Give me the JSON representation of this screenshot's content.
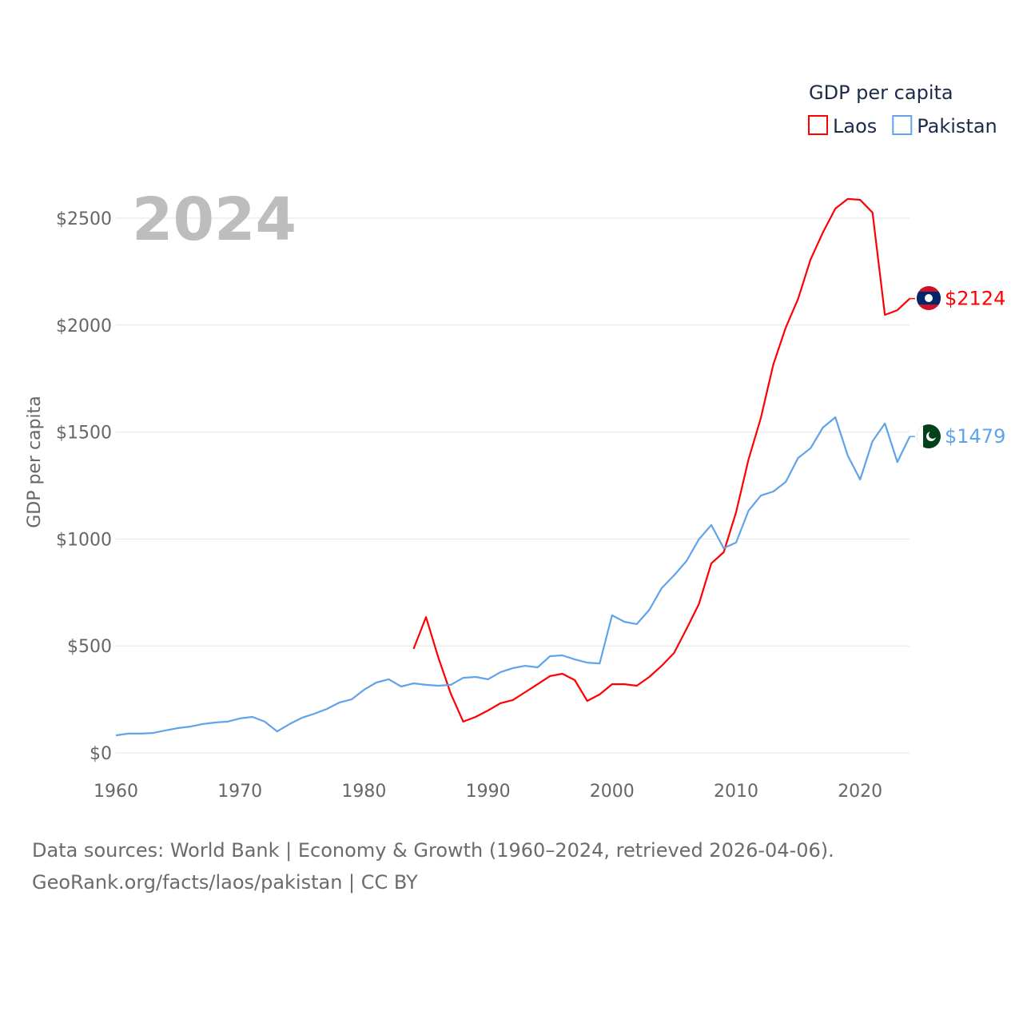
{
  "chart_data": {
    "type": "line",
    "title": "GDP per capita",
    "big_year": "2024",
    "ylabel": "GDP per capita",
    "xlabel": "",
    "ylim": [
      0,
      2500
    ],
    "xlim": [
      1960,
      2024
    ],
    "yticks": [
      0,
      500,
      1000,
      1500,
      2000,
      2500
    ],
    "ytick_labels": [
      "$0",
      "$500",
      "$1000",
      "$1500",
      "$2000",
      "$2500"
    ],
    "xticks": [
      1960,
      1970,
      1980,
      1990,
      2000,
      2010,
      2020
    ],
    "xtick_labels": [
      "1960",
      "1970",
      "1980",
      "1990",
      "2000",
      "2010",
      "2020"
    ],
    "grid": true,
    "legend_placement": "top-right",
    "series": [
      {
        "name": "Laos",
        "color": "#ff0000",
        "end_label": "$2124",
        "start": 1984,
        "values": [
          486,
          635,
          445,
          277,
          146,
          168,
          198,
          232,
          247,
          284,
          321,
          359,
          370,
          340,
          243,
          273,
          321,
          321,
          314,
          355,
          407,
          467,
          579,
          695,
          886,
          938,
          1125,
          1371,
          1566,
          1816,
          1988,
          2123,
          2306,
          2433,
          2545,
          2590,
          2586,
          2526,
          2048,
          2070,
          2124
        ]
      },
      {
        "name": "Pakistan",
        "color": "#5fa4ea",
        "end_label": "$1479",
        "start": 1960,
        "values": [
          82,
          90,
          90,
          93,
          105,
          116,
          123,
          135,
          142,
          146,
          161,
          168,
          146,
          100,
          135,
          164,
          183,
          205,
          235,
          250,
          295,
          329,
          344,
          310,
          325,
          318,
          314,
          318,
          351,
          355,
          344,
          377,
          396,
          407,
          400,
          452,
          456,
          437,
          422,
          418,
          643,
          613,
          602,
          669,
          770,
          830,
          897,
          998,
          1065,
          957,
          983,
          1132,
          1203,
          1222,
          1267,
          1379,
          1424,
          1521,
          1569,
          1390,
          1278,
          1457,
          1540,
          1360,
          1479
        ]
      }
    ]
  },
  "footer": {
    "line1": "Data sources: World Bank | Economy & Growth (1960–2024, retrieved 2026-04-06).",
    "line2": "GeoRank.org/facts/laos/pakistan | CC BY"
  }
}
